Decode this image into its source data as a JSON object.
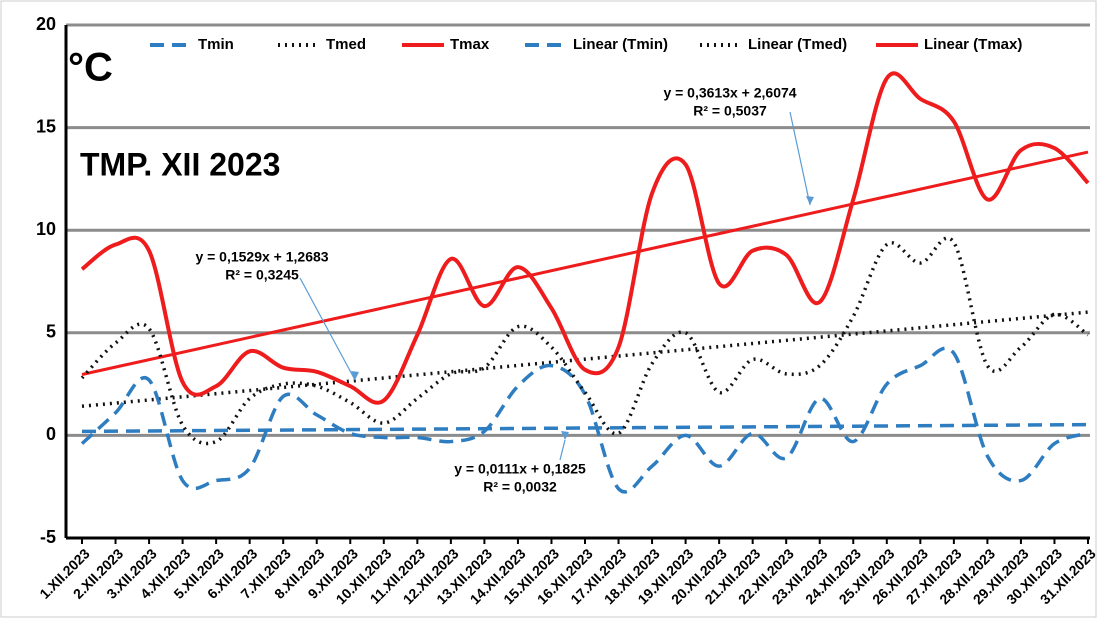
{
  "chart_data": {
    "type": "line",
    "annotations": [
      "°C",
      "TMP. XII 2023"
    ],
    "categories": [
      "1.XII.2023",
      "2.XII.2023",
      "3.XII.2023",
      "4.XII.2023",
      "5.XII.2023",
      "6.XII.2023",
      "7.XII.2023",
      "8.XII.2023",
      "9.XII.2023",
      "10.XII.2023",
      "11.XII.2023",
      "12.XII.2023",
      "13.XII.2023",
      "14.XII.2023",
      "15.XII.2023",
      "16.XII.2023",
      "17.XII.2023",
      "18.XII.2023",
      "19.XII.2023",
      "20.XII.2023",
      "21.XII.2023",
      "22.XII.2023",
      "23.XII.2023",
      "24.XII.2023",
      "25.XII.2023",
      "26.XII.2023",
      "27.XII.2023",
      "28.XII.2023",
      "29.XII.2023",
      "30.XII.2023",
      "31.XII.2023"
    ],
    "series": [
      {
        "name": "Tmin",
        "color": "#2e7dc1",
        "dash": "dashed",
        "values": [
          -0.4,
          1.1,
          2.7,
          -2.2,
          -2.2,
          -1.6,
          1.9,
          1.0,
          0.1,
          -0.1,
          -0.1,
          -0.3,
          0.2,
          2.4,
          3.4,
          2.0,
          -2.6,
          -1.5,
          0.0,
          -1.5,
          0.1,
          -1.1,
          1.8,
          -0.3,
          2.5,
          3.4,
          4.0,
          -1.0,
          -2.2,
          -0.4,
          0.1
        ]
      },
      {
        "name": "Tmed",
        "color": "#111111",
        "dash": "dotted",
        "values": [
          2.8,
          4.5,
          5.2,
          0.5,
          -0.3,
          1.8,
          2.5,
          2.4,
          1.6,
          0.6,
          1.8,
          3.0,
          3.3,
          5.3,
          4.3,
          2.1,
          0.1,
          3.5,
          5.0,
          2.1,
          3.7,
          3.0,
          3.4,
          5.8,
          9.3,
          8.4,
          9.4,
          3.4,
          4.3,
          5.9,
          4.9
        ]
      },
      {
        "name": "Tmax",
        "color": "#ee1c1c",
        "dash": "solid",
        "values": [
          8.1,
          9.3,
          9.0,
          2.6,
          2.4,
          4.1,
          3.3,
          3.1,
          2.4,
          1.7,
          4.9,
          8.6,
          6.3,
          8.2,
          6.2,
          3.2,
          4.3,
          11.8,
          13.2,
          7.4,
          9.0,
          8.8,
          6.5,
          11.5,
          17.4,
          16.4,
          15.3,
          11.5,
          13.9,
          14.0,
          12.3
        ]
      }
    ],
    "trendlines": [
      {
        "name": "Linear (Tmin)",
        "color": "#2e7dc1",
        "dash": "dashed",
        "slope": 0.0111,
        "intercept": 0.1825,
        "equation": "y = 0,0111x + 0,1825",
        "r2": "R² = 0,0032"
      },
      {
        "name": "Linear (Tmed)",
        "color": "#111111",
        "dash": "dotted",
        "slope": 0.1529,
        "intercept": 1.2683,
        "equation": "y = 0,1529x + 1,2683",
        "r2": "R² = 0,3245"
      },
      {
        "name": "Linear (Tmax)",
        "color": "#ee1c1c",
        "dash": "solid",
        "slope": 0.3613,
        "intercept": 2.6074,
        "equation": "y = 0,3613x + 2,6074",
        "r2": "R² = 0,5037"
      }
    ],
    "ylim": [
      -5,
      20
    ],
    "yticks": [
      -5,
      0,
      5,
      10,
      15,
      20
    ],
    "grid": true
  }
}
